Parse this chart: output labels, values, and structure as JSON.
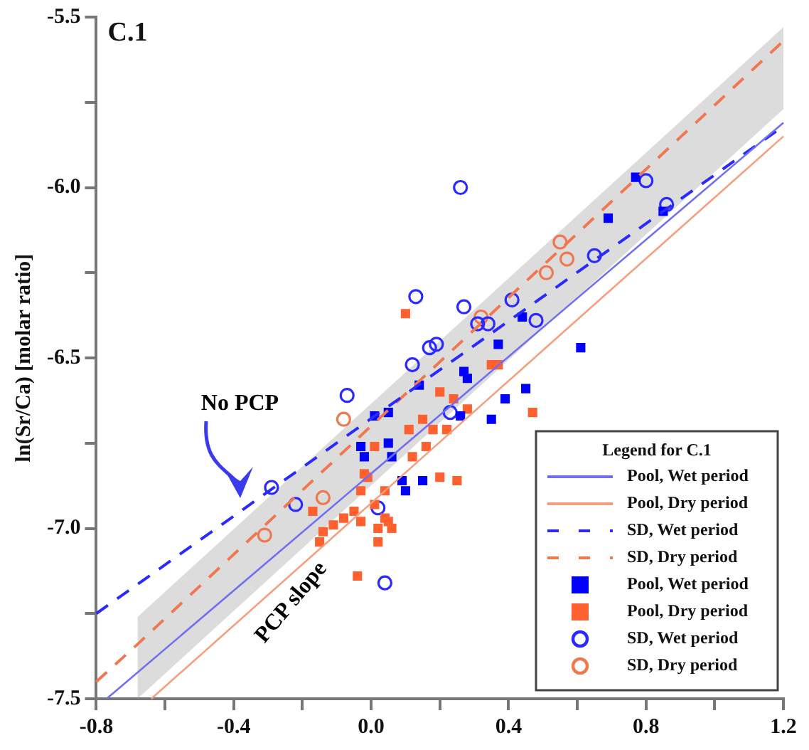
{
  "chart_data": {
    "type": "scatter",
    "title": "C.1",
    "ylabel": "ln(Sr/Ca) [molar ratio]",
    "legend_title": "Legend for C.1",
    "legend": "bottom right",
    "grid": false,
    "annotations": [
      "No PCP",
      "PCP slope"
    ],
    "xlim": [
      -0.8,
      1.2
    ],
    "xticks": [
      {
        "value": -0.8,
        "label": "-0.8"
      },
      {
        "value": -0.6,
        "label": null
      },
      {
        "value": -0.4,
        "label": "-0.4"
      },
      {
        "value": -0.2,
        "label": null
      },
      {
        "value": 0,
        "label": "0.0"
      },
      {
        "value": 0.2,
        "label": null
      },
      {
        "value": 0.4,
        "label": "0.4"
      },
      {
        "value": 0.6,
        "label": null
      },
      {
        "value": 0.8,
        "label": "0.8"
      },
      {
        "value": 1,
        "label": null
      },
      {
        "value": 1.2,
        "label": "1.2"
      }
    ],
    "ylim": [
      -7.5,
      -5.5
    ],
    "yticks": [
      {
        "value": -7.5,
        "label": "-7.5"
      },
      {
        "value": -7.25,
        "label": null
      },
      {
        "value": -7,
        "label": "-7.0"
      },
      {
        "value": -6.75,
        "label": null
      },
      {
        "value": -6.5,
        "label": "-6.5"
      },
      {
        "value": -6.25,
        "label": null
      },
      {
        "value": -6,
        "label": "-6.0"
      },
      {
        "value": -5.75,
        "label": null
      },
      {
        "value": -5.5,
        "label": "-5.5"
      }
    ],
    "series": [
      {
        "name": "Pool, Wet period",
        "type": "line",
        "color": "#7070ee",
        "marker": "none",
        "line_style": "solid",
        "x": [
          -0.77,
          1.2
        ],
        "values": [
          -7.5,
          -5.81
        ]
      },
      {
        "name": "Pool, Dry period",
        "type": "line",
        "color": "#f4a080",
        "marker": "none",
        "line_style": "solid",
        "x": [
          -0.64,
          1.2
        ],
        "values": [
          -7.5,
          -5.85
        ]
      },
      {
        "name": "SD, Wet period",
        "type": "line",
        "color": "#2a2aff",
        "marker": "none",
        "line_style": "dashed",
        "x": [
          -0.8,
          1.2
        ],
        "values": [
          -7.25,
          -5.82
        ]
      },
      {
        "name": "SD, Dry period",
        "type": "line",
        "color": "#f07850",
        "marker": "none",
        "line_style": "dashed",
        "x": [
          -0.8,
          -0.68,
          1.2
        ],
        "values": [
          -7.45,
          -7.34,
          -5.57
        ],
        "lower": [
          null,
          -7.5,
          -5.77
        ],
        "upper": [
          null,
          -7.26,
          -5.53
        ]
      },
      {
        "name": "Pool, Wet period",
        "type": "scatter",
        "color": "#0000ff",
        "marker": "square",
        "x": [
          0.77,
          0.69,
          0.85,
          0.44,
          0.61,
          0.45,
          0.37,
          0.27,
          0.28,
          0.14,
          0.39,
          0.35,
          0.26,
          0.05,
          0.01,
          -0.03,
          -0.02,
          0.05,
          0.06,
          0.09,
          0.1,
          0.15
        ],
        "values": [
          -5.97,
          -6.09,
          -6.07,
          -6.38,
          -6.47,
          -6.59,
          -6.46,
          -6.54,
          -6.56,
          -6.58,
          -6.62,
          -6.68,
          -6.67,
          -6.66,
          -6.67,
          -6.76,
          -6.79,
          -6.75,
          -6.79,
          -6.86,
          -6.89,
          -6.86
        ]
      },
      {
        "name": "Pool, Dry period",
        "type": "scatter",
        "color": "#ff6030",
        "marker": "square",
        "x": [
          0.1,
          0.2,
          0.24,
          0.11,
          0.15,
          0.18,
          0.22,
          0.01,
          -0.02,
          -0.03,
          -0.17,
          0.35,
          0.37,
          0.16,
          0.28,
          0.47,
          0.12,
          0.04,
          0.2,
          0.25,
          0.01,
          0.04,
          0.06,
          0.02,
          -0.03,
          -0.08,
          -0.11,
          -0.14,
          -0.15,
          -0.05,
          0.02,
          -0.04,
          0.05,
          -0.01
        ],
        "values": [
          -6.37,
          -6.6,
          -6.62,
          -6.71,
          -6.68,
          -6.71,
          -6.71,
          -6.76,
          -6.84,
          -6.89,
          -6.95,
          -6.52,
          -6.52,
          -6.76,
          -6.65,
          -6.66,
          -6.79,
          -6.89,
          -6.85,
          -6.86,
          -6.93,
          -6.97,
          -7.0,
          -7.0,
          -6.98,
          -6.97,
          -6.99,
          -7.01,
          -7.04,
          -6.95,
          -7.04,
          -7.14,
          -6.98,
          -6.85
        ]
      },
      {
        "name": "SD, Wet period",
        "type": "scatter",
        "color": "#2a2aff",
        "marker": "circle",
        "x": [
          0.26,
          0.13,
          0.27,
          0.41,
          0.31,
          0.34,
          0.48,
          0.19,
          0.17,
          0.12,
          -0.07,
          0.23,
          -0.29,
          -0.22,
          0.02,
          0.04,
          0.8,
          0.86,
          0.65
        ],
        "values": [
          -6.0,
          -6.32,
          -6.35,
          -6.33,
          -6.4,
          -6.4,
          -6.39,
          -6.46,
          -6.47,
          -6.52,
          -6.61,
          -6.66,
          -6.88,
          -6.93,
          -6.94,
          -7.16,
          -5.98,
          -6.05,
          -6.2
        ]
      },
      {
        "name": "SD, Dry period",
        "type": "scatter",
        "color": "#f07850",
        "marker": "circle",
        "x": [
          0.55,
          0.57,
          0.51,
          0.32,
          -0.08,
          -0.14,
          -0.31
        ],
        "values": [
          -6.16,
          -6.21,
          -6.25,
          -6.38,
          -6.68,
          -6.91,
          -7.02
        ]
      }
    ]
  }
}
